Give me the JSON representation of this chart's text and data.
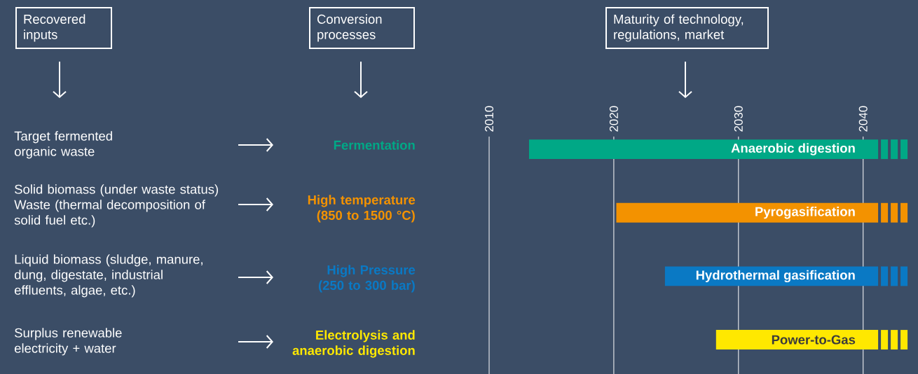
{
  "chart_data": {
    "type": "bar",
    "orientation": "horizontal",
    "categories": [
      "Anaerobic digestion",
      "Pyrogasification",
      "Hydrothermal gasification",
      "Power-to-Gas"
    ],
    "base": [
      2013.2,
      2020.2,
      2024.1,
      2028.2
    ],
    "values": [
      28.0,
      21.0,
      17.1,
      13.0
    ],
    "colors": [
      "#00a886",
      "#f39200",
      "#0a79c4",
      "#ffe800"
    ],
    "xlim": [
      2010,
      2044.4
    ],
    "xticks": [
      2010,
      2020,
      2030,
      2040
    ],
    "grid": "x",
    "tick_labels": "x",
    "annotations": [
      "Recovered inputs",
      "Conversion processes",
      "Maturity of technology, regulations, market",
      "Target fermented organic waste",
      "Solid biomass (under waste status) Waste (thermal decomposition of solid fuel etc.)",
      "Liquid biomass (sludge, manure, dung, digestate, industrial effluents, algae, etc.)",
      "Surplus renewable electricity + water",
      "Fermentation",
      "High temperature (850 to 1500 °C)",
      "High Pressure (250 to 300 bar)",
      "Electrolysis and anaerobic digestion"
    ]
  }
}
